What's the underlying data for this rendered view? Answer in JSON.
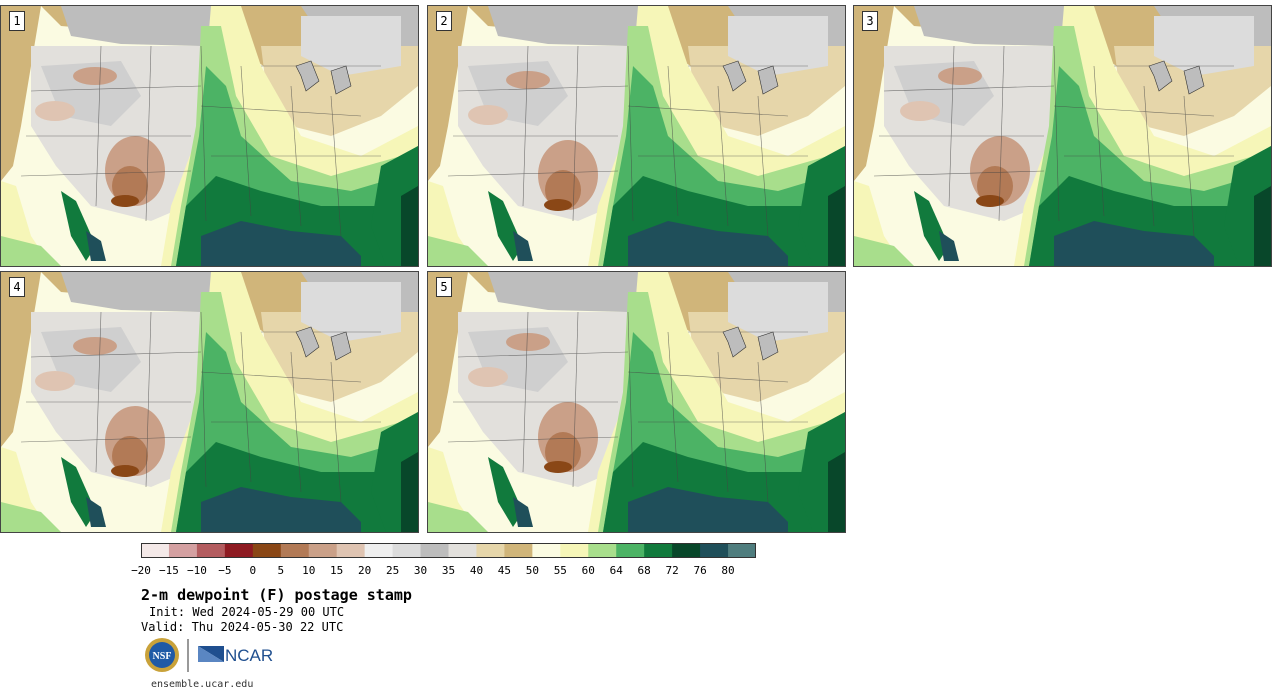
{
  "panels": [
    {
      "label": "1",
      "variant": 0
    },
    {
      "label": "2",
      "variant": 1
    },
    {
      "label": "3",
      "variant": 2
    },
    {
      "label": "4",
      "variant": 3
    },
    {
      "label": "5",
      "variant": 4
    }
  ],
  "colorbar": {
    "colors": [
      "#f4e9e8",
      "#d4a0a1",
      "#b35c5f",
      "#8e1b22",
      "#8a4716",
      "#b27a56",
      "#caa088",
      "#dfc4b2",
      "#efefef",
      "#dcdcdc",
      "#bdbdbd",
      "#e2e0dc",
      "#e6d6aa",
      "#d0b57a",
      "#fbfbe2",
      "#f6f6b8",
      "#a8de8c",
      "#4cb365",
      "#117a3d",
      "#08472a",
      "#1f4f5a",
      "#4f7d7e"
    ],
    "ticks": [
      "−20",
      "−15",
      "−10",
      "−5",
      "0",
      "5",
      "10",
      "15",
      "20",
      "25",
      "30",
      "35",
      "40",
      "45",
      "50",
      "55",
      "60",
      "64",
      "68",
      "72",
      "76",
      "80"
    ]
  },
  "title": "2-m dewpoint (F) postage stamp",
  "init": "Init: Wed 2024-05-29 00 UTC",
  "valid": "Valid: Thu 2024-05-30 22 UTC",
  "logos": {
    "nsf": "NSF",
    "ncar": "NCAR"
  },
  "site": "ensemble.ucar.edu"
}
